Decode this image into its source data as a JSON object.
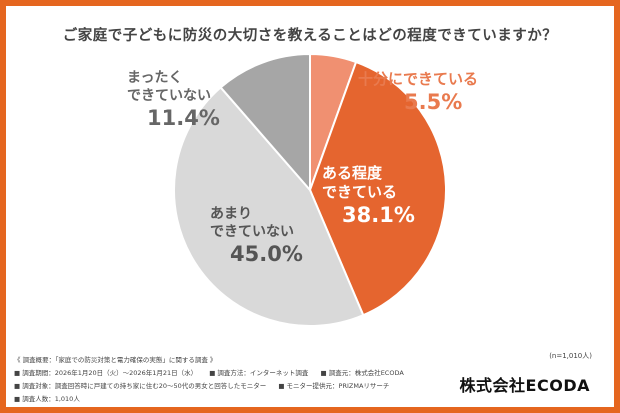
{
  "title": "ご家庭で子どもに防災の大切さを教えることはどの程度できていますか？",
  "sample_size": "(n=1,010人)",
  "brand": "株式会社ECODA",
  "notes": {
    "overview": "《 調査概要：「家庭での防災対策と電力確保の実態」に関する調査 》",
    "period": "■ 調査期間：2026年1月20日（火）〜2026年1月21日（水）",
    "method": "■ 調査方法：インターネット調査",
    "organizer": "■ 調査元：株式会社ECODA",
    "target": "■ 調査対象：調査回答時に戸建ての持ち家に住む20〜50代の男女と回答したモニター",
    "provider": "■ モニター提供元：PRIZMAリサーチ",
    "count": "■ 調査人数：1,010人"
  },
  "chart_data": {
    "type": "pie",
    "title": "ご家庭で子どもに防災の大切さを教えることはどの程度できていますか？",
    "slices": [
      {
        "label": "十分にできている",
        "value": 5.5,
        "value_label": "5.5%",
        "color": "#f09071"
      },
      {
        "label": "ある程度できている",
        "label_lines": [
          "ある程度",
          "できている"
        ],
        "value": 38.1,
        "value_label": "38.1%",
        "color": "#e5652f"
      },
      {
        "label": "あまりできていない",
        "label_lines": [
          "あまり",
          "できていない"
        ],
        "value": 45.0,
        "value_label": "45.0%",
        "color": "#d9d9d9"
      },
      {
        "label": "まったくできていない",
        "label_lines": [
          "まったく",
          "できていない"
        ],
        "value": 11.4,
        "value_label": "11.4%",
        "color": "#a6a6a6"
      }
    ],
    "start": "12 o'clock",
    "direction": "clockwise",
    "legend": "none"
  }
}
